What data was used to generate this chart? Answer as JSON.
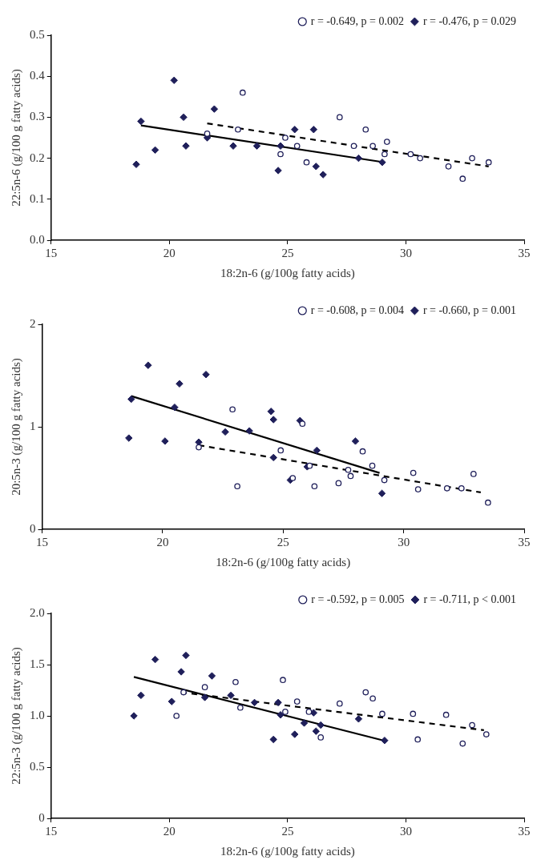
{
  "chart_data": [
    {
      "type": "scatter",
      "xlabel": "18:2n-6 (g/100g fatty acids)",
      "ylabel": "22:5n-6 (g/100 g fatty acids)",
      "xlim": [
        15,
        35
      ],
      "xticks": [
        15,
        20,
        25,
        30,
        35
      ],
      "ylim": [
        0,
        0.5
      ],
      "yticks": [
        {
          "value": 0,
          "label": "0.0"
        },
        0.1,
        0.2,
        0.3,
        0.4,
        0.5
      ],
      "grid": false,
      "legend": "top right",
      "series": [
        {
          "name": "r = -0.476, p = 0.029",
          "marker": "diamond",
          "color": "#1f1f5a",
          "x": [
            18.6,
            18.8,
            19.4,
            20.2,
            20.6,
            20.7,
            21.6,
            21.9,
            22.7,
            23.7,
            24.6,
            24.7,
            25.3,
            26.1,
            26.2,
            26.5,
            28.0,
            29.0
          ],
          "values": [
            0.185,
            0.29,
            0.22,
            0.39,
            0.3,
            0.23,
            0.25,
            0.32,
            0.23,
            0.23,
            0.17,
            0.23,
            0.27,
            0.27,
            0.18,
            0.16,
            0.2,
            0.19
          ]
        },
        {
          "name": "r = -0.649, p = 0.002",
          "marker": "circle",
          "color": "#1f1f5a",
          "x": [
            21.6,
            22.9,
            23.1,
            24.7,
            24.9,
            25.4,
            25.8,
            27.2,
            27.8,
            28.3,
            28.6,
            29.1,
            29.2,
            30.2,
            30.6,
            31.8,
            32.4,
            32.8,
            33.5
          ],
          "values": [
            0.26,
            0.27,
            0.36,
            0.21,
            0.25,
            0.23,
            0.19,
            0.3,
            0.23,
            0.27,
            0.23,
            0.21,
            0.24,
            0.21,
            0.2,
            0.18,
            0.15,
            0.2,
            0.19
          ]
        },
        {
          "type": "line",
          "marker": "none",
          "line_style": "solid",
          "color": "#000000",
          "x": [
            18.8,
            29.1
          ],
          "values": [
            0.28,
            0.19
          ]
        },
        {
          "type": "line",
          "marker": "none",
          "line_style": "dashed",
          "color": "#000000",
          "x": [
            21.6,
            33.5
          ],
          "values": [
            0.285,
            0.18
          ]
        }
      ]
    },
    {
      "type": "scatter",
      "xlabel": "18:2n-6 (g/100g fatty acids)",
      "ylabel": "20:5n-3 (g/100 g fatty acids)",
      "xlim": [
        15,
        35
      ],
      "xticks": [
        15,
        20,
        25,
        30,
        35
      ],
      "ylim": [
        0,
        2
      ],
      "yticks": [
        0,
        1,
        2
      ],
      "grid": false,
      "legend": "top right",
      "series": [
        {
          "name": "r = -0.660, p = 0.001",
          "marker": "diamond",
          "color": "#1f1f5a",
          "x": [
            18.6,
            18.7,
            19.4,
            20.1,
            20.5,
            20.7,
            21.5,
            21.8,
            22.6,
            23.6,
            24.5,
            24.6,
            24.6,
            25.3,
            25.7,
            26.0,
            26.4,
            28.0,
            29.1
          ],
          "values": [
            0.89,
            1.27,
            1.6,
            0.86,
            1.19,
            1.42,
            0.85,
            1.51,
            0.95,
            0.96,
            1.15,
            1.07,
            0.7,
            0.48,
            1.06,
            0.61,
            0.77,
            0.86,
            0.35
          ]
        },
        {
          "name": "r = -0.608, p = 0.004",
          "marker": "circle",
          "color": "#1f1f5a",
          "x": [
            21.5,
            22.9,
            23.1,
            24.9,
            25.4,
            25.8,
            26.1,
            26.3,
            27.3,
            27.7,
            27.8,
            28.3,
            28.7,
            29.2,
            30.4,
            30.6,
            31.8,
            32.4,
            32.9,
            33.5
          ],
          "values": [
            0.8,
            1.17,
            0.42,
            0.77,
            0.5,
            1.03,
            0.62,
            0.42,
            0.45,
            0.58,
            0.52,
            0.76,
            0.62,
            0.48,
            0.55,
            0.39,
            0.4,
            0.4,
            0.54,
            0.26
          ]
        },
        {
          "type": "line",
          "marker": "none",
          "line_style": "solid",
          "color": "#000000",
          "x": [
            18.7,
            29.0
          ],
          "values": [
            1.3,
            0.55
          ]
        },
        {
          "type": "line",
          "marker": "none",
          "line_style": "dashed",
          "color": "#000000",
          "x": [
            21.5,
            33.2
          ],
          "values": [
            0.82,
            0.36
          ]
        }
      ]
    },
    {
      "type": "scatter",
      "xlabel": "18:2n-6 (g/100g fatty acids)",
      "ylabel": "22:5n-3 (g/100 g fatty acids)",
      "xlim": [
        15,
        35
      ],
      "xticks": [
        15,
        20,
        25,
        30,
        35
      ],
      "ylim": [
        0,
        2
      ],
      "yticks": [
        0,
        0.5,
        {
          "value": 1,
          "label": "1.0"
        },
        1.5,
        {
          "value": 2,
          "label": "2.0"
        }
      ],
      "grid": false,
      "legend": "top right",
      "series": [
        {
          "name": "r = -0.711, p < 0.001",
          "marker": "diamond",
          "color": "#1f1f5a",
          "x": [
            18.5,
            18.8,
            19.4,
            20.1,
            20.5,
            20.7,
            21.5,
            21.8,
            22.6,
            23.6,
            24.4,
            24.6,
            24.7,
            25.3,
            25.7,
            26.1,
            26.2,
            26.4,
            28.0,
            29.1
          ],
          "values": [
            1.0,
            1.2,
            1.55,
            1.14,
            1.43,
            1.59,
            1.18,
            1.39,
            1.2,
            1.13,
            0.77,
            1.13,
            1.01,
            0.82,
            0.93,
            1.03,
            0.85,
            0.91,
            0.97,
            0.76
          ]
        },
        {
          "name": "r = -0.592, p = 0.005",
          "marker": "circle",
          "color": "#1f1f5a",
          "x": [
            20.3,
            20.6,
            21.5,
            22.8,
            23.0,
            24.8,
            24.9,
            25.4,
            25.9,
            26.4,
            27.2,
            28.3,
            28.6,
            29.0,
            30.3,
            30.5,
            31.7,
            32.4,
            32.8,
            33.4
          ],
          "values": [
            1.0,
            1.23,
            1.28,
            1.33,
            1.08,
            1.35,
            1.04,
            1.14,
            1.04,
            0.79,
            1.12,
            1.23,
            1.17,
            1.02,
            1.02,
            0.77,
            1.01,
            0.73,
            0.91,
            0.82
          ]
        },
        {
          "type": "line",
          "marker": "none",
          "line_style": "solid",
          "color": "#000000",
          "x": [
            18.5,
            29.05
          ],
          "values": [
            1.38,
            0.76
          ]
        },
        {
          "type": "line",
          "marker": "none",
          "line_style": "dashed",
          "color": "#000000",
          "x": [
            20.5,
            33.3
          ],
          "values": [
            1.23,
            0.86
          ]
        }
      ]
    }
  ]
}
